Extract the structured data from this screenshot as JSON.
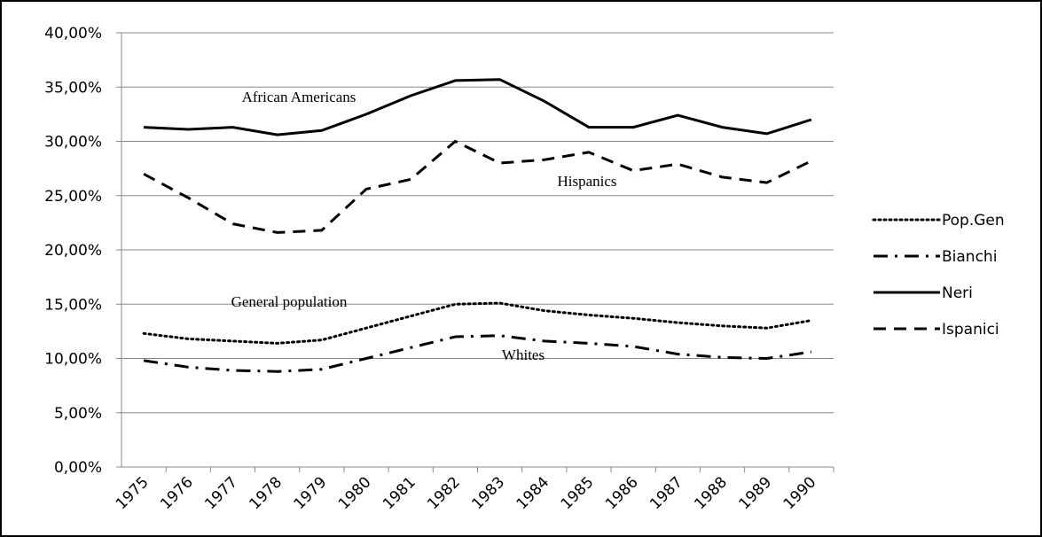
{
  "chart_data": {
    "type": "line",
    "categories": [
      "1975",
      "1976",
      "1977",
      "1978",
      "1979",
      "1980",
      "1981",
      "1982",
      "1983",
      "1984",
      "1985",
      "1986",
      "1987",
      "1988",
      "1989",
      "1990"
    ],
    "series": [
      {
        "name": "Pop.Gen",
        "color": "#000000",
        "dash": "dotted",
        "values": [
          12.3,
          11.8,
          11.6,
          11.4,
          11.7,
          12.8,
          13.9,
          15.0,
          15.1,
          14.4,
          14.0,
          13.7,
          13.3,
          13.0,
          12.8,
          13.5
        ]
      },
      {
        "name": "Bianchi",
        "color": "#000000",
        "dash": "dashdot",
        "values": [
          9.8,
          9.2,
          8.9,
          8.8,
          9.0,
          10.0,
          11.0,
          12.0,
          12.1,
          11.6,
          11.4,
          11.1,
          10.4,
          10.1,
          10.0,
          10.6
        ]
      },
      {
        "name": "Neri",
        "color": "#000000",
        "dash": "solid",
        "values": [
          31.3,
          31.1,
          31.3,
          30.6,
          31.0,
          32.5,
          34.2,
          35.6,
          35.7,
          33.7,
          31.3,
          31.3,
          32.4,
          31.3,
          30.7,
          32.0
        ]
      },
      {
        "name": "Ispanici",
        "color": "#000000",
        "dash": "dashed",
        "values": [
          27.0,
          24.8,
          22.4,
          21.6,
          21.8,
          25.6,
          26.5,
          30.0,
          28.0,
          28.3,
          29.0,
          27.3,
          27.9,
          26.7,
          26.2,
          28.2
        ]
      }
    ],
    "annotations": [
      "African Americans",
      "Hispanics",
      "General population",
      "Whites"
    ],
    "ylim": [
      0,
      40
    ],
    "yticks": [
      {
        "value": 0,
        "label": "0,00%"
      },
      {
        "value": 5,
        "label": "5,00%"
      },
      {
        "value": 10,
        "label": "10,00%"
      },
      {
        "value": 15,
        "label": "15,00%"
      },
      {
        "value": 20,
        "label": "20,00%"
      },
      {
        "value": 25,
        "label": "25,00%"
      },
      {
        "value": 30,
        "label": "30,00%"
      },
      {
        "value": 35,
        "label": "35,00%"
      },
      {
        "value": 40,
        "label": "40,00%"
      }
    ],
    "grid": true,
    "legend": "right"
  }
}
